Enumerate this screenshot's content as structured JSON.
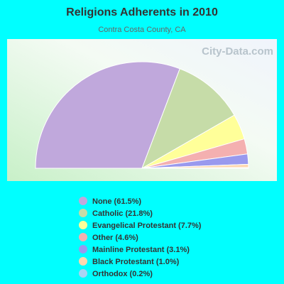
{
  "chart_data": {
    "type": "half-pie",
    "title": "Religions Adherents in 2010",
    "subtitle": "Contra Costa County, CA",
    "watermark": "City-Data.com",
    "categories": [
      "None (61.5%)",
      "Catholic (21.8%)",
      "Evangelical Protestant (7.7%)",
      "Other (4.6%)",
      "Mainline Protestant (3.1%)",
      "Black Protestant (1.0%)",
      "Orthodox (0.2%)"
    ],
    "values": [
      61.5,
      21.8,
      7.7,
      4.6,
      3.1,
      1.0,
      0.2
    ],
    "colors": [
      "#c0a8dc",
      "#c6dca8",
      "#ffff99",
      "#f4b0b0",
      "#9999ee",
      "#ffd8b0",
      "#aad4f4"
    ]
  }
}
